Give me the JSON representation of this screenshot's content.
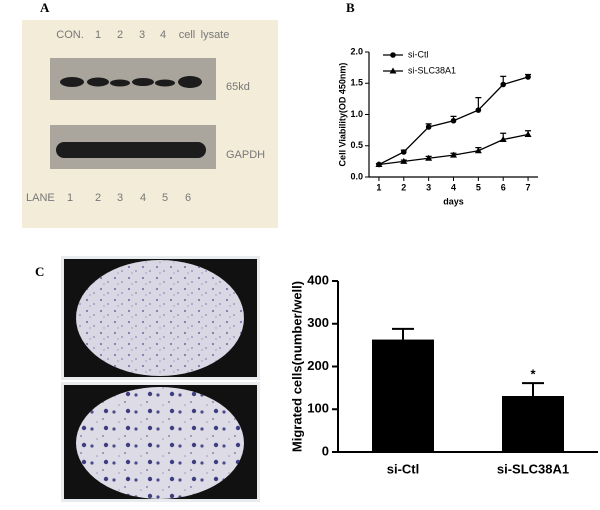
{
  "panels": {
    "a": {
      "label": "A",
      "header": [
        "CON.",
        "1",
        "2",
        "3",
        "4",
        "cell",
        "lysate"
      ],
      "bands": [
        "65kd",
        "GAPDH"
      ],
      "lane_title": "LANE",
      "lanes": [
        "1",
        "2",
        "3",
        "4",
        "5",
        "6"
      ]
    },
    "b": {
      "label": "B"
    },
    "c": {
      "label": "C"
    }
  },
  "chart_data": [
    {
      "type": "line",
      "ylabel": "Cell Viability(OD 450nm)",
      "xlabel": "days",
      "x": [
        1,
        2,
        3,
        4,
        5,
        6,
        7
      ],
      "xlim": [
        0.6,
        7.4
      ],
      "xticks": [
        1,
        2,
        3,
        4,
        5,
        6,
        7
      ],
      "ylim": [
        0,
        2
      ],
      "yticks": [
        {
          "value": 0,
          "label": "0.0"
        },
        {
          "value": 0.5,
          "label": "0.5"
        },
        {
          "value": 1,
          "label": "1.0"
        },
        {
          "value": 1.5,
          "label": "1.5"
        },
        {
          "value": 2,
          "label": "2.0"
        }
      ],
      "series": [
        {
          "name": "si-Ctl",
          "color": "#000000",
          "marker": "circle",
          "values": [
            0.2,
            0.4,
            0.8,
            0.9,
            1.07,
            1.48,
            1.6
          ],
          "errors": [
            0.01,
            0.03,
            0.05,
            0.07,
            0.2,
            0.13,
            0.04
          ]
        },
        {
          "name": "si-SLC38A1",
          "color": "#000000",
          "marker": "triangle",
          "values": [
            0.2,
            0.25,
            0.3,
            0.35,
            0.42,
            0.6,
            0.68
          ],
          "errors": [
            0.01,
            0.02,
            0.03,
            0.03,
            0.05,
            0.1,
            0.06
          ]
        }
      ],
      "legend": "upper left"
    },
    {
      "type": "bar",
      "ylabel": "Migrated cells(number/well)",
      "categories": [
        "si-Ctl",
        "si-SLC38A1"
      ],
      "values": [
        263,
        131
      ],
      "errors": [
        25,
        30
      ],
      "color": "#000000",
      "ylim": [
        0,
        400
      ],
      "yticks": [
        0,
        100,
        200,
        300,
        400
      ],
      "annotations": [
        null,
        "*"
      ]
    }
  ]
}
